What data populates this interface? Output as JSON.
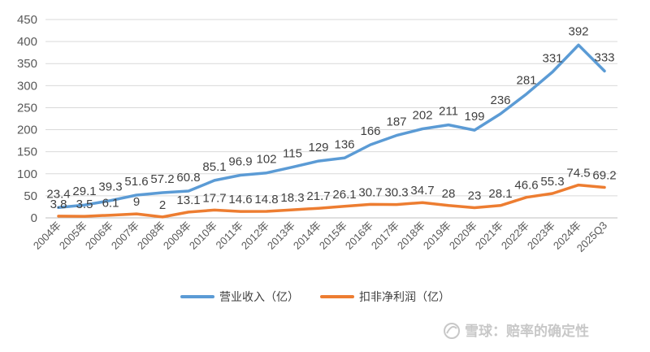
{
  "chart_data": {
    "type": "line",
    "categories": [
      "2004年",
      "2005年",
      "2006年",
      "2007年",
      "2008年",
      "2009年",
      "2010年",
      "2011年",
      "2012年",
      "2013年",
      "2014年",
      "2015年",
      "2016年",
      "2017年",
      "2018年",
      "2019年",
      "2020年",
      "2021年",
      "2022年",
      "2023年",
      "2024年",
      "2025Q3"
    ],
    "series": [
      {
        "name": "营业收入（亿）",
        "color": "#5b9bd5",
        "values": [
          23.4,
          29.1,
          39.3,
          51.6,
          57.2,
          60.8,
          85.1,
          96.9,
          102,
          115,
          129,
          136,
          166,
          187,
          202,
          211,
          199,
          236,
          281,
          331,
          392,
          333
        ],
        "labels": [
          "23.4",
          "29.1",
          "39.3",
          "51.6",
          "57.2",
          "60.8",
          "85.1",
          "96.9",
          "102",
          "115",
          "129",
          "136",
          "166",
          "187",
          "202",
          "211",
          "199",
          "236",
          "281",
          "331",
          "392",
          "333"
        ]
      },
      {
        "name": "扣非净利润（亿）",
        "color": "#ed7d31",
        "values": [
          3.8,
          3.5,
          6.1,
          9,
          2,
          13.1,
          17.7,
          14.6,
          14.8,
          18.3,
          21.7,
          26.1,
          30.7,
          30.3,
          34.7,
          28,
          23,
          28.1,
          46.6,
          55.3,
          74.5,
          69.2
        ],
        "labels": [
          "3.8",
          "3.5",
          "6.1",
          "9",
          "2",
          "13.1",
          "17.7",
          "14.6",
          "14.8",
          "18.3",
          "21.7",
          "26.1",
          "30.7",
          "30.3",
          "34.7",
          "28",
          "23",
          "28.1",
          "46.6",
          "55.3",
          "74.5",
          "69.2"
        ]
      }
    ],
    "ylim": [
      0,
      450
    ],
    "yticks": [
      "0",
      "50",
      "100",
      "150",
      "200",
      "250",
      "300",
      "350",
      "400",
      "450"
    ],
    "grid": true,
    "legend_position": "bottom"
  },
  "watermark": {
    "text": "雪球：赔率的确定性"
  }
}
